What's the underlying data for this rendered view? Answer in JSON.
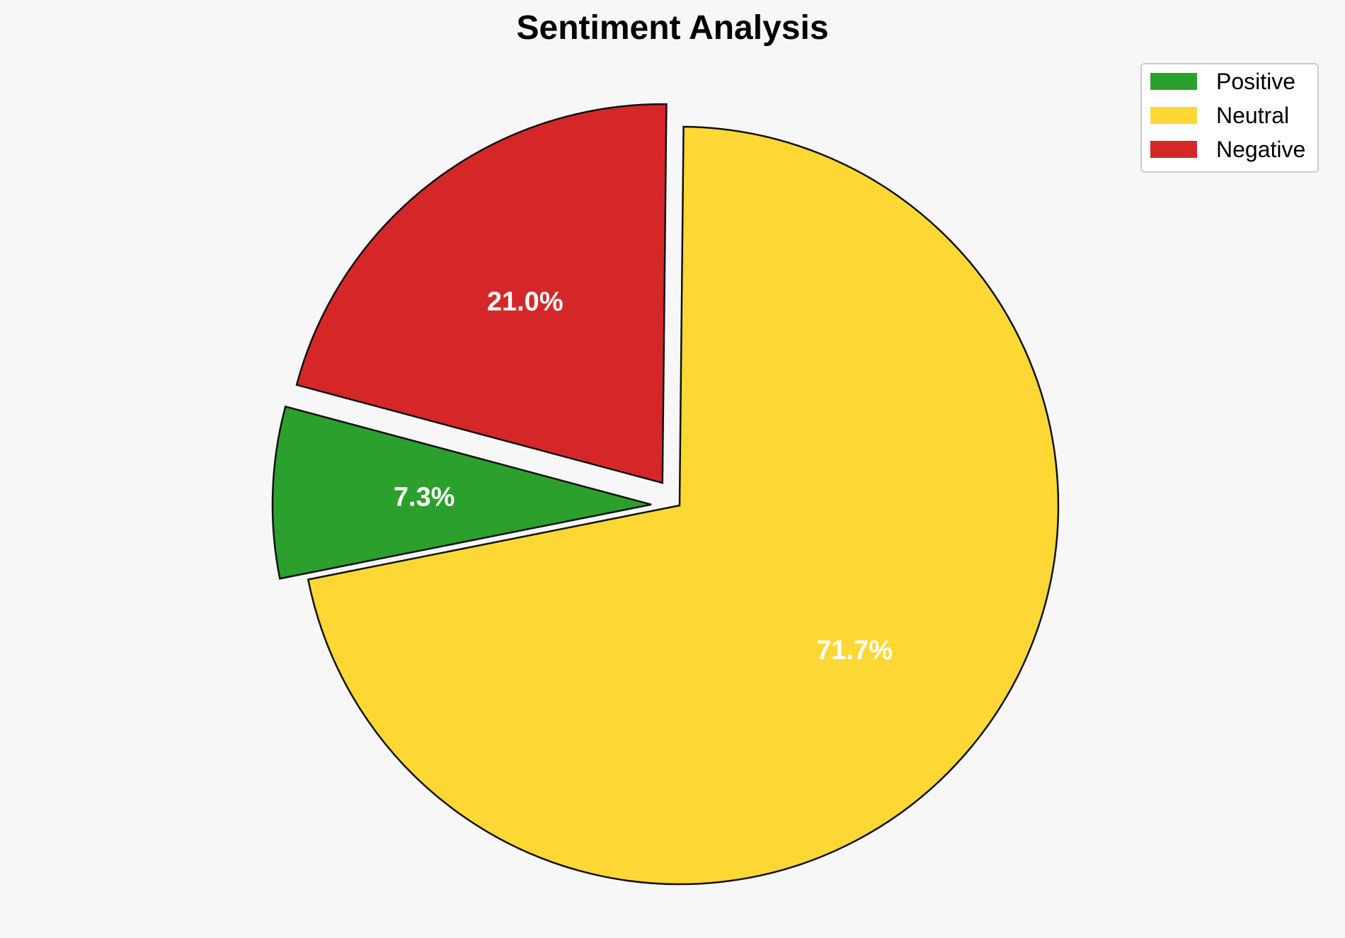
{
  "chart_data": {
    "type": "pie",
    "title": "Sentiment Analysis",
    "categories": [
      "Positive",
      "Neutral",
      "Negative"
    ],
    "values": [
      7.3,
      71.7,
      21.0
    ],
    "labels": [
      "7.3%",
      "71.7%",
      "21.0%"
    ],
    "colors": [
      "#2ca02c",
      "#fdd835",
      "#d62728"
    ],
    "exploded": [
      true,
      false,
      true
    ],
    "start_angle_deg": 165,
    "direction": "counterclockwise",
    "legend": {
      "position": "top-right",
      "entries": [
        "Positive",
        "Neutral",
        "Negative"
      ]
    }
  }
}
